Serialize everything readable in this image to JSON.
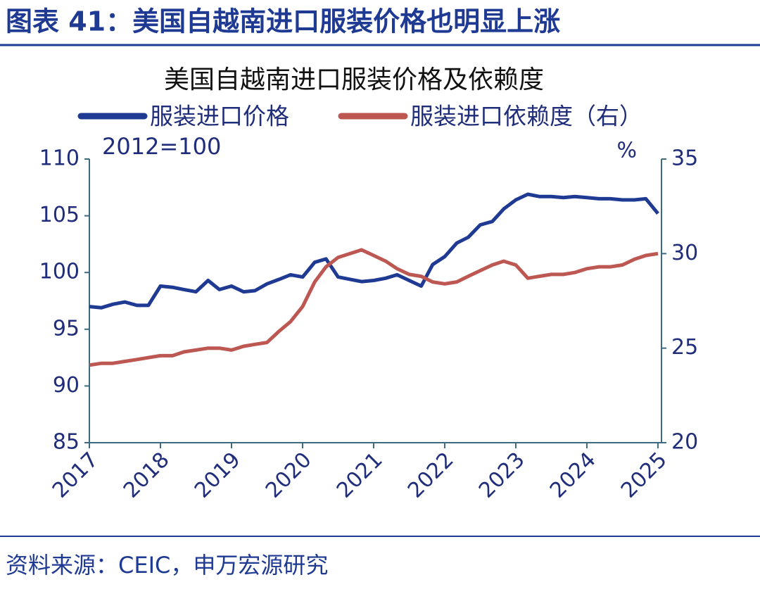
{
  "header": {
    "title": "图表 41：美国自越南进口服装价格也明显上涨"
  },
  "source": "资料来源：CEIC，申万宏源研究",
  "chart_data": {
    "type": "line",
    "title": "美国自越南进口服装价格及依赖度",
    "annotations": {
      "left_unit": "2012=100",
      "right_unit": "%"
    },
    "x": [
      2017,
      2017.17,
      2017.33,
      2017.5,
      2017.67,
      2017.83,
      2018,
      2018.17,
      2018.33,
      2018.5,
      2018.67,
      2018.83,
      2019,
      2019.17,
      2019.33,
      2019.5,
      2019.67,
      2019.83,
      2020,
      2020.17,
      2020.33,
      2020.5,
      2020.67,
      2020.83,
      2021,
      2021.17,
      2021.33,
      2021.5,
      2021.67,
      2021.83,
      2022,
      2022.17,
      2022.33,
      2022.5,
      2022.67,
      2022.83,
      2023,
      2023.17,
      2023.33,
      2023.5,
      2023.67,
      2023.83,
      2024,
      2024.17,
      2024.33,
      2024.5,
      2024.67,
      2024.83,
      2025
    ],
    "series": [
      {
        "name": "服装进口价格",
        "color": "#1f3a93",
        "axis": "y",
        "values": [
          97.0,
          96.9,
          97.2,
          97.4,
          97.1,
          97.1,
          98.8,
          98.7,
          98.5,
          98.3,
          99.3,
          98.5,
          98.8,
          98.3,
          98.4,
          99.0,
          99.4,
          99.8,
          99.6,
          100.9,
          101.2,
          99.6,
          99.4,
          99.2,
          99.3,
          99.5,
          99.8,
          99.3,
          98.8,
          100.7,
          101.4,
          102.6,
          103.1,
          104.2,
          104.5,
          105.6,
          106.4,
          106.9,
          106.7,
          106.7,
          106.6,
          106.7,
          106.6,
          106.5,
          106.5,
          106.4,
          106.4,
          106.5,
          105.2
        ]
      },
      {
        "name": "服装进口依赖度（右）",
        "color": "#bd5752",
        "axis": "y2",
        "values": [
          24.1,
          24.2,
          24.2,
          24.3,
          24.4,
          24.5,
          24.6,
          24.6,
          24.8,
          24.9,
          25.0,
          25.0,
          24.9,
          25.1,
          25.2,
          25.3,
          25.9,
          26.4,
          27.2,
          28.5,
          29.3,
          29.8,
          30.0,
          30.2,
          29.9,
          29.6,
          29.2,
          28.9,
          28.8,
          28.5,
          28.4,
          28.5,
          28.8,
          29.1,
          29.4,
          29.6,
          29.4,
          28.7,
          28.8,
          28.9,
          28.9,
          29.0,
          29.2,
          29.3,
          29.3,
          29.4,
          29.7,
          29.9,
          30.0
        ]
      }
    ],
    "xlim": [
      2017,
      2025.05
    ],
    "xticks": [
      2017,
      2018,
      2019,
      2020,
      2021,
      2022,
      2023,
      2024,
      2025
    ],
    "ylim": [
      85,
      110
    ],
    "yticks": [
      85,
      90,
      95,
      100,
      105,
      110
    ],
    "y2lim": [
      20,
      35
    ],
    "y2ticks": [
      20,
      25,
      30,
      35
    ]
  }
}
